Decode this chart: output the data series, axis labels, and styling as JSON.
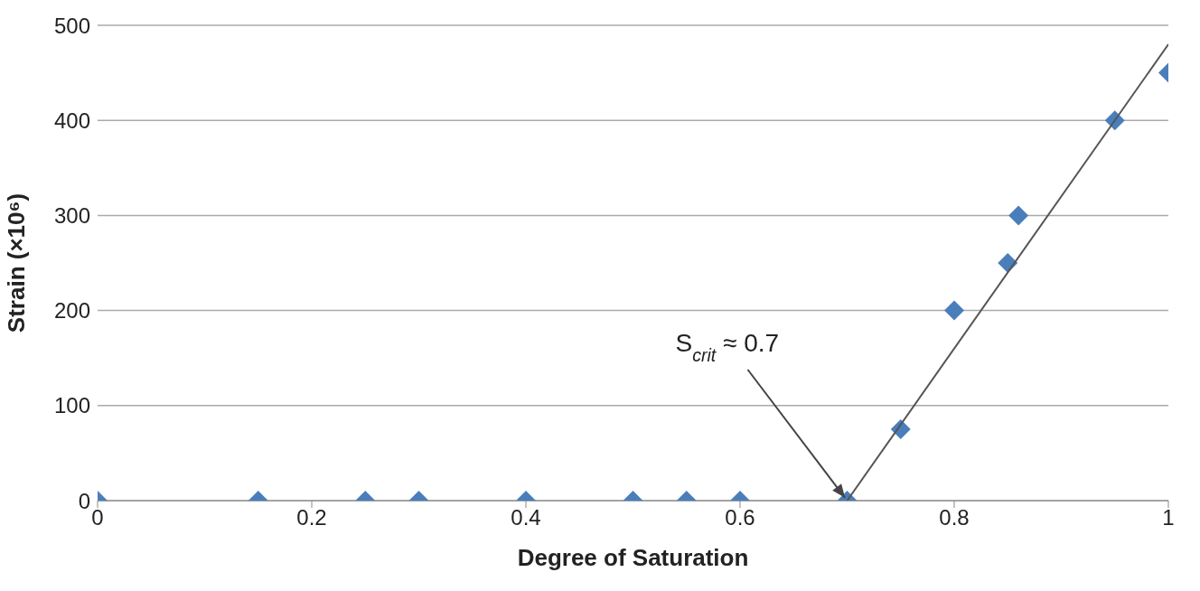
{
  "chart_data": {
    "type": "scatter",
    "xlabel": "Degree of Saturation",
    "ylabel": "Strain (×10⁶)",
    "xlim": [
      0,
      1
    ],
    "xticks": [
      0,
      0.2,
      0.4,
      0.6,
      0.8,
      1
    ],
    "ylim": [
      0,
      500
    ],
    "yticks": [
      0,
      100,
      200,
      300,
      400,
      500
    ],
    "grid": "y",
    "series": [
      {
        "marker": "diamond",
        "color": "#4a7ebb",
        "x": [
          0,
          0.15,
          0.25,
          0.3,
          0.4,
          0.5,
          0.55,
          0.6,
          0.7,
          0.75,
          0.8,
          0.85,
          0.86,
          0.95,
          1
        ],
        "values": [
          0,
          0,
          0,
          0,
          0,
          0,
          0,
          0,
          0,
          75,
          200,
          250,
          300,
          400,
          450
        ]
      },
      {
        "type": "line",
        "color": "#555555",
        "x": [
          0.7,
          1
        ],
        "values": [
          0,
          480
        ]
      }
    ],
    "annotations": [
      {
        "text": "S$_{crit}$ ≈ 0.7",
        "x": 0.7,
        "y": 0
      }
    ]
  }
}
